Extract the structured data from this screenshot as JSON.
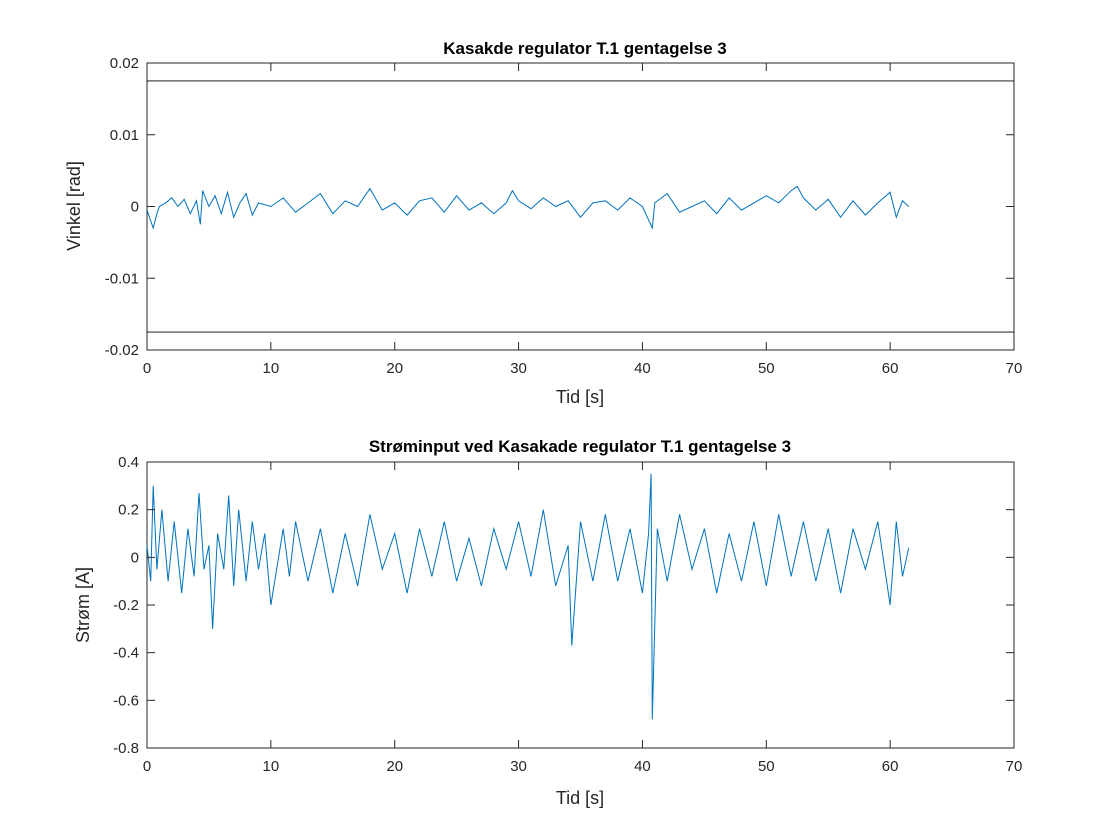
{
  "chart_data": [
    {
      "type": "line",
      "title": "Kasakde regulator T.1 gentagelse 3",
      "xlabel": "Tid [s]",
      "ylabel": "Vinkel [rad]",
      "xlim": [
        0,
        70
      ],
      "ylim": [
        -0.02,
        0.02
      ],
      "xticks": [
        "0",
        "10",
        "20",
        "30",
        "40",
        "50",
        "60",
        "70"
      ],
      "yticks": [
        "-0.02",
        "-0.01",
        "0",
        "0.01",
        "0.02"
      ],
      "grid": false,
      "line_color": "#0072BD",
      "reference_lines": [
        {
          "y": 0.0175,
          "color": "#000000"
        },
        {
          "y": -0.0175,
          "color": "#000000"
        }
      ],
      "series": [
        {
          "x": [
            0,
            0.3,
            0.5,
            0.8,
            1.0,
            1.5,
            2.0,
            2.5,
            3.0,
            3.5,
            4.0,
            4.3,
            4.5,
            5.0,
            5.5,
            6.0,
            6.5,
            7.0,
            7.5,
            8.0,
            8.5,
            9.0,
            10.0,
            11.0,
            12.0,
            13.0,
            14.0,
            15.0,
            16.0,
            17.0,
            18.0,
            19.0,
            20.0,
            21.0,
            22.0,
            23.0,
            24.0,
            25.0,
            26.0,
            27.0,
            28.0,
            29.0,
            29.5,
            30.0,
            31.0,
            32.0,
            33.0,
            34.0,
            35.0,
            36.0,
            37.0,
            38.0,
            39.0,
            40.0,
            40.8,
            41.0,
            42.0,
            43.0,
            44.0,
            45.0,
            46.0,
            47.0,
            48.0,
            49.0,
            50.0,
            51.0,
            52.0,
            52.5,
            53.0,
            54.0,
            55.0,
            56.0,
            57.0,
            58.0,
            59.0,
            60.0,
            60.5,
            61.0,
            61.5
          ],
          "y": [
            -0.0005,
            -0.002,
            -0.003,
            -0.001,
            0.0,
            0.0005,
            0.0012,
            0.0,
            0.001,
            -0.001,
            0.0008,
            -0.0025,
            0.0022,
            0.0,
            0.0015,
            -0.001,
            0.002,
            -0.0015,
            0.0005,
            0.0018,
            -0.0012,
            0.0005,
            0.0,
            0.0012,
            -0.0008,
            0.0005,
            0.0018,
            -0.001,
            0.0008,
            0.0,
            0.0025,
            -0.0005,
            0.0005,
            -0.0012,
            0.0008,
            0.0012,
            -0.0008,
            0.0015,
            -0.0005,
            0.0005,
            -0.001,
            0.0005,
            0.0022,
            0.0008,
            -0.0003,
            0.0012,
            0.0,
            0.0008,
            -0.0015,
            0.0005,
            0.0008,
            -0.0005,
            0.0012,
            0.0,
            -0.003,
            0.0005,
            0.0018,
            -0.0008,
            0.0,
            0.0008,
            -0.001,
            0.0012,
            -0.0005,
            0.0005,
            0.0015,
            0.0005,
            0.0022,
            0.0028,
            0.0012,
            -0.0005,
            0.001,
            -0.0015,
            0.0008,
            -0.0012,
            0.0005,
            0.002,
            -0.0015,
            0.0008,
            0.0
          ]
        }
      ]
    },
    {
      "type": "line",
      "title": "Strøminput ved Kasakade regulator T.1 gentagelse 3",
      "xlabel": "Tid [s]",
      "ylabel": "Strøm [A]",
      "xlim": [
        0,
        70
      ],
      "ylim": [
        -0.8,
        0.4
      ],
      "xticks": [
        "0",
        "10",
        "20",
        "30",
        "40",
        "50",
        "60",
        "70"
      ],
      "yticks": [
        "-0.8",
        "-0.6",
        "-0.4",
        "-0.2",
        "0",
        "0.2",
        "0.4"
      ],
      "grid": false,
      "line_color": "#0072BD",
      "series": [
        {
          "x": [
            0,
            0.3,
            0.5,
            0.8,
            1.2,
            1.7,
            2.2,
            2.8,
            3.3,
            3.8,
            4.2,
            4.6,
            5.0,
            5.3,
            5.7,
            6.2,
            6.6,
            7.0,
            7.4,
            8.0,
            8.5,
            9.0,
            9.5,
            10.0,
            11.0,
            11.5,
            12.0,
            13.0,
            14.0,
            15.0,
            16.0,
            17.0,
            18.0,
            19.0,
            20.0,
            21.0,
            22.0,
            23.0,
            24.0,
            25.0,
            26.0,
            27.0,
            28.0,
            29.0,
            30.0,
            31.0,
            32.0,
            33.0,
            34.0,
            34.3,
            35.0,
            36.0,
            37.0,
            38.0,
            39.0,
            40.0,
            40.5,
            40.7,
            40.8,
            41.2,
            42.0,
            43.0,
            44.0,
            45.0,
            46.0,
            47.0,
            48.0,
            49.0,
            50.0,
            51.0,
            52.0,
            53.0,
            54.0,
            55.0,
            56.0,
            57.0,
            58.0,
            59.0,
            60.0,
            60.5,
            61.0,
            61.5
          ],
          "y": [
            0.05,
            -0.1,
            0.3,
            -0.05,
            0.2,
            -0.1,
            0.15,
            -0.15,
            0.12,
            -0.08,
            0.27,
            -0.05,
            0.05,
            -0.3,
            0.1,
            -0.05,
            0.26,
            -0.12,
            0.2,
            -0.1,
            0.15,
            -0.05,
            0.1,
            -0.2,
            0.12,
            -0.08,
            0.15,
            -0.1,
            0.12,
            -0.15,
            0.1,
            -0.12,
            0.18,
            -0.05,
            0.1,
            -0.15,
            0.12,
            -0.08,
            0.15,
            -0.1,
            0.08,
            -0.12,
            0.12,
            -0.05,
            0.15,
            -0.08,
            0.2,
            -0.12,
            0.05,
            -0.37,
            0.15,
            -0.1,
            0.18,
            -0.1,
            0.12,
            -0.15,
            0.1,
            0.35,
            -0.68,
            0.12,
            -0.1,
            0.18,
            -0.05,
            0.12,
            -0.15,
            0.1,
            -0.1,
            0.15,
            -0.12,
            0.18,
            -0.08,
            0.15,
            -0.1,
            0.12,
            -0.15,
            0.12,
            -0.05,
            0.15,
            -0.2,
            0.15,
            -0.08,
            0.04
          ]
        }
      ]
    }
  ]
}
